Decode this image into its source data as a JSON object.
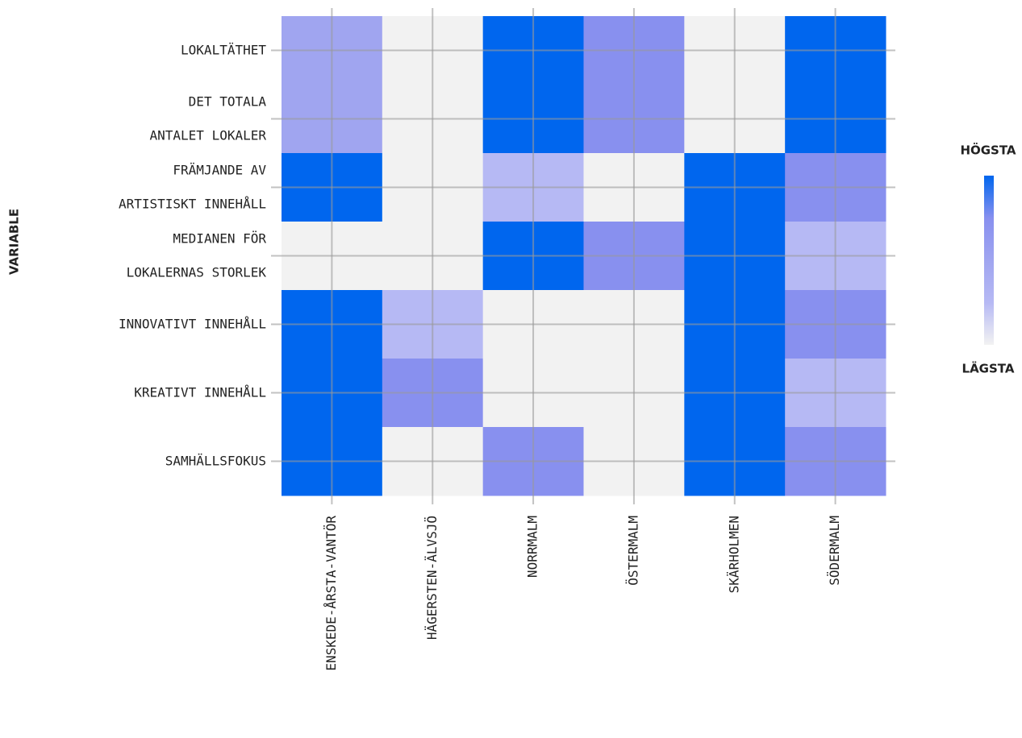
{
  "chart_data": {
    "type": "heatmap",
    "y_label": "VARIABLE",
    "x_categories": [
      "ENSKEDE-ÅRSTA-VANTÖR",
      "HÄGERSTEN-ÄLVSJÖ",
      "NORRMALM",
      "ÖSTERMALM",
      "SKÄRHOLMEN",
      "SÖDERMALM"
    ],
    "y_categories": [
      [
        "LOKALTÄTHET"
      ],
      [
        "DET TOTALA",
        "ANTALET LOKALER"
      ],
      [
        "FRÄMJANDE AV",
        "ARTISTISKT INNEHÅLL"
      ],
      [
        "MEDIANEN FÖR",
        "LOKALERNAS STORLEK"
      ],
      [
        "INNOVATIVT INNEHÅLL"
      ],
      [
        "KREATIVT INNEHÅLL"
      ],
      [
        "SAMHÄLLSFOKUS"
      ]
    ],
    "values": [
      [
        3,
        1,
        5,
        4,
        1,
        5
      ],
      [
        3,
        1,
        5,
        4,
        1,
        5
      ],
      [
        5,
        1,
        2,
        1,
        5,
        4
      ],
      [
        1,
        1,
        5,
        4,
        5,
        2
      ],
      [
        5,
        2,
        1,
        1,
        5,
        4
      ],
      [
        5,
        4,
        1,
        1,
        5,
        2
      ],
      [
        5,
        1,
        4,
        1,
        5,
        4
      ]
    ],
    "colorscale": [
      {
        "value": 1,
        "color": "#f2f2f2"
      },
      {
        "value": 2,
        "color": "#b6b9f4"
      },
      {
        "value": 3,
        "color": "#a0a5f0"
      },
      {
        "value": 4,
        "color": "#8890ef"
      },
      {
        "value": 5,
        "color": "#0066ee"
      }
    ],
    "legend_high": "HÖGSTA",
    "legend_low": "LÄGSTA",
    "grid": true
  }
}
